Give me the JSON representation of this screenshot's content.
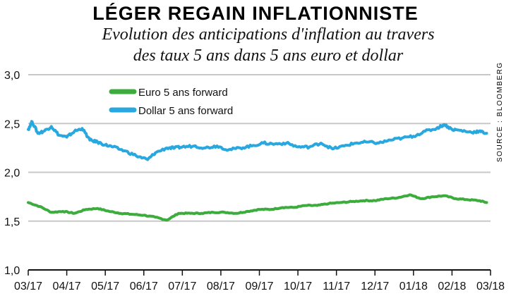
{
  "chart_data": {
    "type": "line",
    "title": "LÉGER REGAIN INFLATIONNISTE",
    "subtitle": [
      "Evolution des anticipations d'inflation au travers",
      "des taux 5 ans dans 5 ans euro et dollar"
    ],
    "source": "SOURCE : BLOOMBERG",
    "ylim": [
      1.0,
      3.0
    ],
    "yticks": [
      "1,0",
      "1,5",
      "2,0",
      "2,5",
      "3,0"
    ],
    "ytick_values": [
      1.0,
      1.5,
      2.0,
      2.5,
      3.0
    ],
    "x_categories": [
      "03/17",
      "04/17",
      "05/17",
      "06/17",
      "07/17",
      "08/17",
      "09/17",
      "10/17",
      "11/17",
      "12/17",
      "01/18",
      "02/18",
      "03/18"
    ],
    "grid": "horizontal",
    "legend_position": "top-left",
    "series": [
      {
        "name": "Euro 5 ans forward",
        "color": "#3cac3c",
        "x": [
          0,
          0.3,
          0.6,
          0.9,
          1.2,
          1.5,
          1.8,
          2.1,
          2.4,
          2.7,
          3.0,
          3.3,
          3.6,
          3.9,
          4.2,
          4.5,
          4.8,
          5.1,
          5.4,
          5.7,
          6.0,
          6.3,
          6.6,
          6.9,
          7.2,
          7.5,
          7.8,
          8.1,
          8.4,
          8.7,
          9.0,
          9.3,
          9.6,
          9.9,
          10.2,
          10.5,
          10.8,
          11.1,
          11.4,
          11.7,
          11.9
        ],
        "values": [
          1.69,
          1.65,
          1.59,
          1.6,
          1.58,
          1.62,
          1.63,
          1.6,
          1.58,
          1.57,
          1.56,
          1.54,
          1.51,
          1.58,
          1.58,
          1.58,
          1.59,
          1.59,
          1.58,
          1.6,
          1.62,
          1.62,
          1.64,
          1.64,
          1.66,
          1.66,
          1.68,
          1.69,
          1.7,
          1.71,
          1.71,
          1.73,
          1.74,
          1.77,
          1.73,
          1.75,
          1.76,
          1.73,
          1.72,
          1.71,
          1.69
        ]
      },
      {
        "name": "Dollar 5 ans forward",
        "color": "#29a8e0",
        "x": [
          0,
          0.1,
          0.25,
          0.4,
          0.6,
          0.8,
          1.0,
          1.2,
          1.4,
          1.6,
          1.8,
          2.0,
          2.2,
          2.5,
          2.8,
          3.1,
          3.3,
          3.6,
          3.8,
          4.0,
          4.3,
          4.6,
          4.9,
          5.2,
          5.5,
          5.8,
          6.1,
          6.4,
          6.7,
          7.0,
          7.3,
          7.6,
          7.9,
          8.2,
          8.5,
          8.8,
          9.1,
          9.4,
          9.7,
          10.0,
          10.3,
          10.6,
          10.8,
          11.0,
          11.2,
          11.5,
          11.7,
          11.9
        ],
        "values": [
          2.44,
          2.52,
          2.4,
          2.42,
          2.47,
          2.38,
          2.36,
          2.42,
          2.45,
          2.33,
          2.31,
          2.28,
          2.26,
          2.22,
          2.17,
          2.13,
          2.2,
          2.25,
          2.25,
          2.26,
          2.27,
          2.25,
          2.27,
          2.23,
          2.25,
          2.27,
          2.3,
          2.29,
          2.3,
          2.26,
          2.26,
          2.3,
          2.24,
          2.27,
          2.3,
          2.31,
          2.3,
          2.33,
          2.35,
          2.37,
          2.42,
          2.45,
          2.49,
          2.44,
          2.43,
          2.41,
          2.42,
          2.4
        ]
      }
    ]
  }
}
